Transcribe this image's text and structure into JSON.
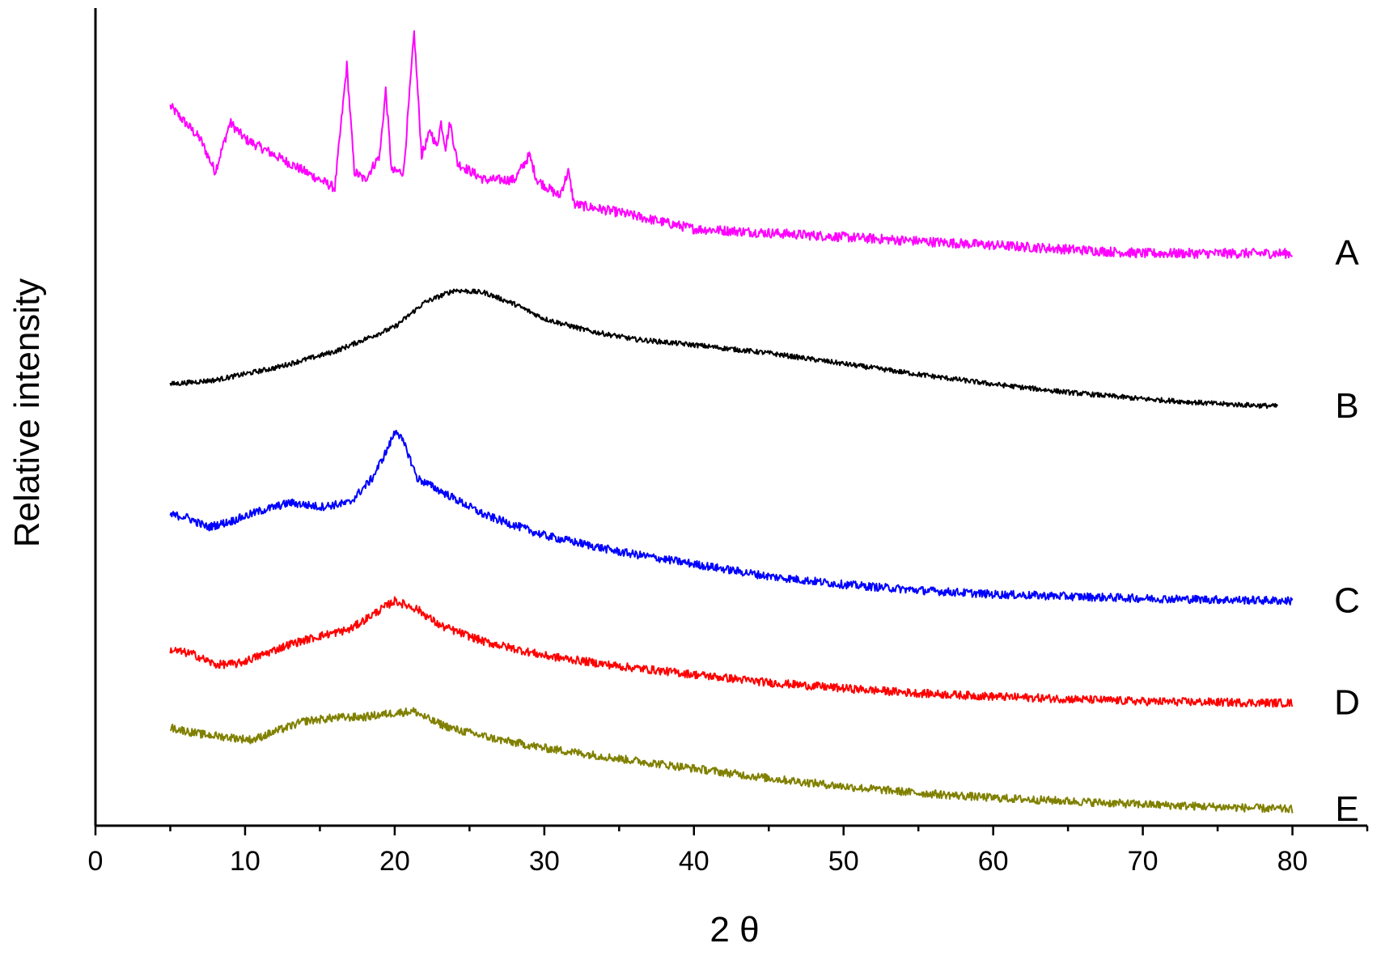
{
  "chart_data": {
    "type": "line",
    "xlabel": "2 θ",
    "ylabel": "Relative intensity",
    "xlim": [
      0,
      85
    ],
    "xticks": [
      "0",
      "10",
      "20",
      "30",
      "40",
      "50",
      "60",
      "70",
      "80"
    ],
    "grid": false,
    "y_ticks_shown": false,
    "series": [
      {
        "name": "A",
        "color": "#ff00ff",
        "x_start": 5,
        "x_end": 80,
        "points": [
          [
            5,
            0.88
          ],
          [
            7,
            0.84
          ],
          [
            8,
            0.8
          ],
          [
            9,
            0.86
          ],
          [
            10,
            0.84
          ],
          [
            12,
            0.82
          ],
          [
            14,
            0.8
          ],
          [
            15,
            0.79
          ],
          [
            16,
            0.78
          ],
          [
            16.8,
            0.93
          ],
          [
            17.3,
            0.8
          ],
          [
            18,
            0.79
          ],
          [
            19,
            0.82
          ],
          [
            19.4,
            0.9
          ],
          [
            19.8,
            0.8
          ],
          [
            20.6,
            0.8
          ],
          [
            21.3,
            0.97
          ],
          [
            21.8,
            0.82
          ],
          [
            22.4,
            0.85
          ],
          [
            22.8,
            0.83
          ],
          [
            23.1,
            0.86
          ],
          [
            23.4,
            0.83
          ],
          [
            23.7,
            0.86
          ],
          [
            24.2,
            0.81
          ],
          [
            26,
            0.79
          ],
          [
            28,
            0.79
          ],
          [
            29,
            0.82
          ],
          [
            29.5,
            0.79
          ],
          [
            31,
            0.77
          ],
          [
            31.6,
            0.8
          ],
          [
            32,
            0.76
          ],
          [
            35,
            0.75
          ],
          [
            40,
            0.73
          ],
          [
            50,
            0.72
          ],
          [
            60,
            0.71
          ],
          [
            70,
            0.7
          ],
          [
            80,
            0.7
          ]
        ],
        "noise": 0.006
      },
      {
        "name": "B",
        "color": "#000000",
        "x_start": 5,
        "x_end": 79,
        "points": [
          [
            5,
            0.54
          ],
          [
            8,
            0.545
          ],
          [
            12,
            0.56
          ],
          [
            16,
            0.58
          ],
          [
            20,
            0.61
          ],
          [
            22,
            0.64
          ],
          [
            24,
            0.655
          ],
          [
            26,
            0.652
          ],
          [
            28,
            0.638
          ],
          [
            30,
            0.62
          ],
          [
            33,
            0.605
          ],
          [
            36,
            0.595
          ],
          [
            40,
            0.588
          ],
          [
            45,
            0.578
          ],
          [
            50,
            0.565
          ],
          [
            55,
            0.552
          ],
          [
            60,
            0.54
          ],
          [
            65,
            0.53
          ],
          [
            70,
            0.522
          ],
          [
            75,
            0.516
          ],
          [
            79,
            0.513
          ]
        ],
        "noise": 0.003
      },
      {
        "name": "C",
        "color": "#0000ff",
        "x_start": 5,
        "x_end": 80,
        "points": [
          [
            5,
            0.38
          ],
          [
            6,
            0.378
          ],
          [
            7.5,
            0.365
          ],
          [
            9,
            0.372
          ],
          [
            11,
            0.385
          ],
          [
            13,
            0.395
          ],
          [
            15,
            0.39
          ],
          [
            17,
            0.395
          ],
          [
            18.5,
            0.425
          ],
          [
            19.5,
            0.46
          ],
          [
            20.1,
            0.485
          ],
          [
            20.8,
            0.46
          ],
          [
            21.5,
            0.425
          ],
          [
            23,
            0.41
          ],
          [
            26,
            0.38
          ],
          [
            30,
            0.355
          ],
          [
            35,
            0.335
          ],
          [
            40,
            0.32
          ],
          [
            45,
            0.305
          ],
          [
            50,
            0.295
          ],
          [
            55,
            0.288
          ],
          [
            60,
            0.283
          ],
          [
            70,
            0.278
          ],
          [
            80,
            0.275
          ]
        ],
        "noise": 0.005
      },
      {
        "name": "D",
        "color": "#ff0000",
        "x_start": 5,
        "x_end": 80,
        "points": [
          [
            5,
            0.215
          ],
          [
            6.5,
            0.21
          ],
          [
            8,
            0.197
          ],
          [
            9.5,
            0.198
          ],
          [
            11,
            0.208
          ],
          [
            13,
            0.222
          ],
          [
            15,
            0.232
          ],
          [
            17,
            0.24
          ],
          [
            18.5,
            0.258
          ],
          [
            20,
            0.275
          ],
          [
            21.5,
            0.265
          ],
          [
            23,
            0.245
          ],
          [
            26,
            0.225
          ],
          [
            30,
            0.208
          ],
          [
            35,
            0.195
          ],
          [
            40,
            0.185
          ],
          [
            45,
            0.175
          ],
          [
            50,
            0.168
          ],
          [
            55,
            0.162
          ],
          [
            60,
            0.158
          ],
          [
            65,
            0.155
          ],
          [
            70,
            0.152
          ],
          [
            75,
            0.151
          ],
          [
            80,
            0.15
          ]
        ],
        "noise": 0.005
      },
      {
        "name": "E",
        "color": "#808000",
        "x_start": 5,
        "x_end": 80,
        "points": [
          [
            5,
            0.12
          ],
          [
            7,
            0.112
          ],
          [
            9,
            0.108
          ],
          [
            10.5,
            0.105
          ],
          [
            12,
            0.115
          ],
          [
            14,
            0.128
          ],
          [
            16,
            0.132
          ],
          [
            18,
            0.133
          ],
          [
            20,
            0.138
          ],
          [
            21.3,
            0.14
          ],
          [
            22.5,
            0.128
          ],
          [
            24,
            0.118
          ],
          [
            27,
            0.105
          ],
          [
            30,
            0.095
          ],
          [
            35,
            0.082
          ],
          [
            40,
            0.07
          ],
          [
            45,
            0.058
          ],
          [
            50,
            0.048
          ],
          [
            55,
            0.04
          ],
          [
            60,
            0.034
          ],
          [
            65,
            0.03
          ],
          [
            70,
            0.026
          ],
          [
            75,
            0.023
          ],
          [
            80,
            0.02
          ]
        ],
        "noise": 0.005
      }
    ],
    "series_labels_position": "right"
  }
}
